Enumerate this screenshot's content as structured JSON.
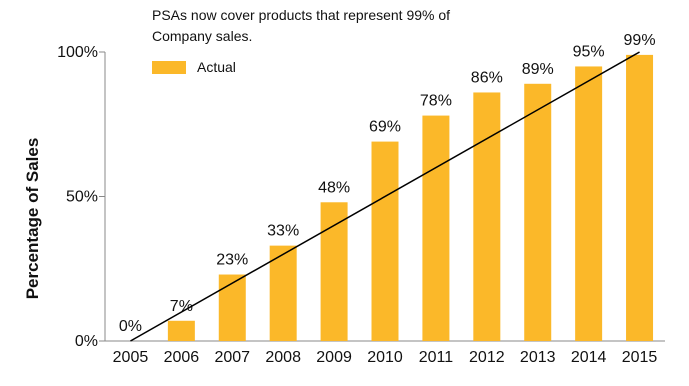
{
  "chart_data": {
    "type": "bar",
    "title": "",
    "annotation": "PSAs now cover products that represent 99% of Company sales.",
    "xlabel": "",
    "ylabel": "Percentage of Sales",
    "ylim": [
      0,
      100
    ],
    "y_ticks": [
      "0%",
      "50%",
      "100%"
    ],
    "categories": [
      "2005",
      "2006",
      "2007",
      "2008",
      "2009",
      "2010",
      "2011",
      "2012",
      "2013",
      "2014",
      "2015"
    ],
    "series": [
      {
        "name": "Actual",
        "values": [
          0,
          7,
          23,
          33,
          48,
          69,
          78,
          86,
          89,
          95,
          99
        ],
        "labels": [
          "0%",
          "7%",
          "23%",
          "33%",
          "48%",
          "69%",
          "78%",
          "86%",
          "89%",
          "95%",
          "99%"
        ]
      }
    ],
    "trend_line": {
      "from": [
        "2005",
        0
      ],
      "to": [
        "2015",
        100
      ]
    },
    "legend": "top-left",
    "grid": false,
    "colors": {
      "bar": "#FBB829",
      "trend": "#000000",
      "axis": "#888888"
    }
  }
}
